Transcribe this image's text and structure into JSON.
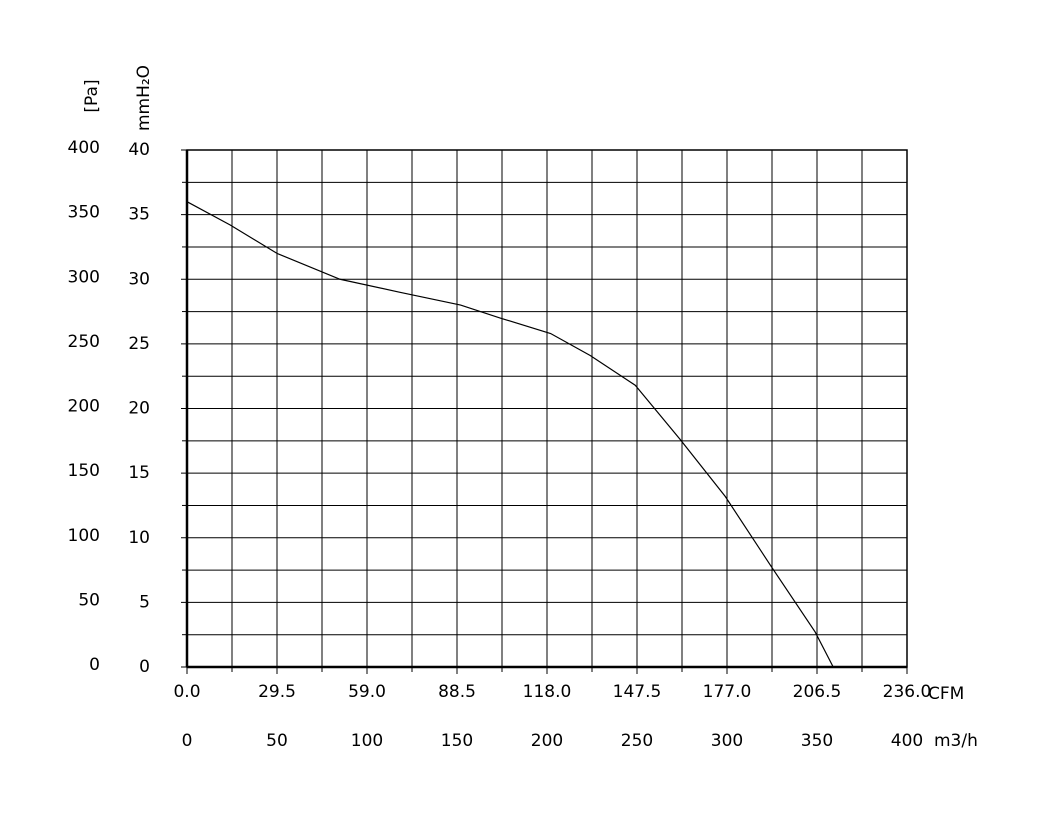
{
  "chart_data": {
    "type": "line",
    "ylabel": "[Pa]",
    "y2label": "mmH₂O",
    "xlabel": "m3/h",
    "x2label": "CFM",
    "xlim": [
      0,
      400
    ],
    "xticks": [
      0,
      50,
      100,
      150,
      200,
      250,
      300,
      350,
      400
    ],
    "xminor": [
      25,
      75,
      125,
      175,
      225,
      275,
      325,
      375
    ],
    "x2lim": [
      0,
      236
    ],
    "x2ticks": [
      {
        "value": 0,
        "label": "0.0"
      },
      29.5,
      {
        "value": 59,
        "label": "59.0"
      },
      88.5,
      {
        "value": 118,
        "label": "118.0"
      },
      147.5,
      {
        "value": 177,
        "label": "177.0"
      },
      206.5,
      {
        "value": 236,
        "label": "236.0"
      }
    ],
    "ylim": [
      0,
      400
    ],
    "yticks": [
      0,
      50,
      100,
      150,
      200,
      250,
      300,
      350,
      400
    ],
    "yminor": [
      25,
      75,
      125,
      175,
      225,
      275,
      325,
      375
    ],
    "y2lim": [
      0,
      40
    ],
    "y2ticks": [
      0,
      5,
      10,
      15,
      20,
      25,
      30,
      35,
      40
    ],
    "grid": true,
    "x": [
      0,
      24,
      50,
      85,
      118,
      152,
      174,
      202,
      224,
      249,
      274,
      299,
      324,
      349,
      359
    ],
    "series": [
      {
        "color": "#000000",
        "values": [
          360,
          342,
          320,
          300,
          290,
          280,
          270,
          258,
          241,
          218,
          176,
          132,
          79,
          27,
          0
        ]
      }
    ]
  }
}
